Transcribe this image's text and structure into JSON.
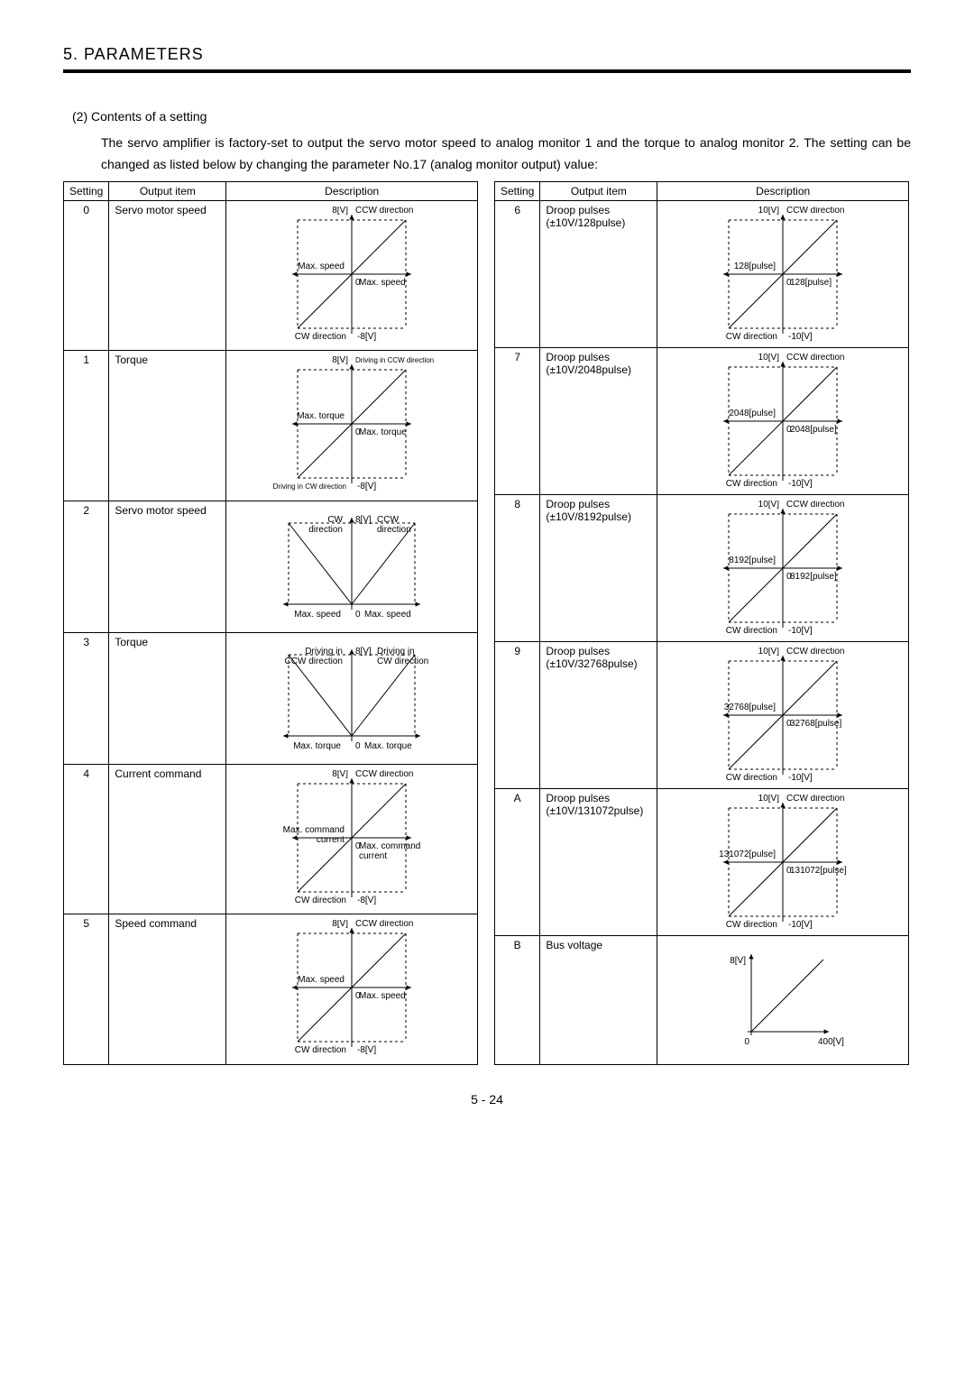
{
  "header": "5. PARAMETERS",
  "subheading": "(2) Contents of a setting",
  "paragraph": "The servo amplifier is factory-set to output the servo motor speed to analog monitor 1 and the torque to analog monitor 2. The setting can be changed as listed below by changing the parameter No.17 (analog monitor output) value:",
  "col_headers": [
    "Setting",
    "Output item",
    "Description"
  ],
  "left_rows": [
    {
      "setting": "0",
      "output": "Servo motor speed",
      "v": "8[V]",
      "nv": "-8[V]",
      "top": "CCW direction",
      "bot": "CW direction",
      "xl": "Max. speed",
      "xr": "Max. speed",
      "graph": "cross"
    },
    {
      "setting": "1",
      "output": "Torque",
      "v": "8[V]",
      "nv": "-8[V]",
      "top": "Driving in CCW direction",
      "bot": "Driving in CW direction",
      "xl": "Max. torque",
      "xr": "Max. torque",
      "graph": "cross",
      "tsmall": true,
      "bsmall": true
    },
    {
      "setting": "2",
      "output": "Servo motor speed",
      "v": "8[V]",
      "top": "CW\ndirection",
      "topr": "CCW\ndirection",
      "xl": "Max. speed",
      "xr": "Max. speed",
      "graph": "vee"
    },
    {
      "setting": "3",
      "output": "Torque",
      "v": "8[V]",
      "top": "Driving in\nCCW direction",
      "topr": "Driving in\nCW direction",
      "xl": "Max. torque",
      "xr": "Max. torque",
      "graph": "vee"
    },
    {
      "setting": "4",
      "output": "Current command",
      "v": "8[V]",
      "nv": "-8[V]",
      "top": "CCW direction",
      "bot": "CW direction",
      "xl": "Max. command\ncurrent",
      "xr": "Max. command\ncurrent",
      "graph": "cross"
    },
    {
      "setting": "5",
      "output": "Speed command",
      "v": "8[V]",
      "nv": "-8[V]",
      "top": "CCW direction",
      "bot": "CW direction",
      "xl": "Max. speed",
      "xr": "Max. speed",
      "graph": "cross"
    }
  ],
  "right_rows": [
    {
      "setting": "6",
      "output": "Droop pulses\n(±10V/128pulse)",
      "v": "10[V]",
      "nv": "-10[V]",
      "top": "CCW direction",
      "bot": "CW direction",
      "xl": "128[pulse]",
      "xr": "128[pulse]",
      "graph": "cross"
    },
    {
      "setting": "7",
      "output": "Droop pulses\n(±10V/2048pulse)",
      "v": "10[V]",
      "nv": "-10[V]",
      "top": "CCW direction",
      "bot": "CW direction",
      "xl": "2048[pulse]",
      "xr": "2048[pulse]",
      "graph": "cross"
    },
    {
      "setting": "8",
      "output": "Droop pulses\n(±10V/8192pulse)",
      "v": "10[V]",
      "nv": "-10[V]",
      "top": "CCW direction",
      "bot": "CW direction",
      "xl": "8192[pulse]",
      "xr": "8192[pulse]",
      "graph": "cross"
    },
    {
      "setting": "9",
      "output": "Droop pulses\n(±10V/32768pulse)",
      "v": "10[V]",
      "nv": "-10[V]",
      "top": "CCW direction",
      "bot": "CW direction",
      "xl": "32768[pulse]",
      "xr": "32768[pulse]",
      "graph": "cross"
    },
    {
      "setting": "A",
      "output": "Droop pulses\n(±10V/131072pulse)",
      "v": "10[V]",
      "nv": "-10[V]",
      "top": "CCW direction",
      "bot": "CW direction",
      "xl": "131072[pulse]",
      "xr": "131072[pulse]",
      "graph": "cross"
    },
    {
      "setting": "B",
      "output": "Bus voltage",
      "v": "8[V]",
      "xr": "400[V]",
      "graph": "firstquad"
    }
  ],
  "page_num": "5 -  24"
}
